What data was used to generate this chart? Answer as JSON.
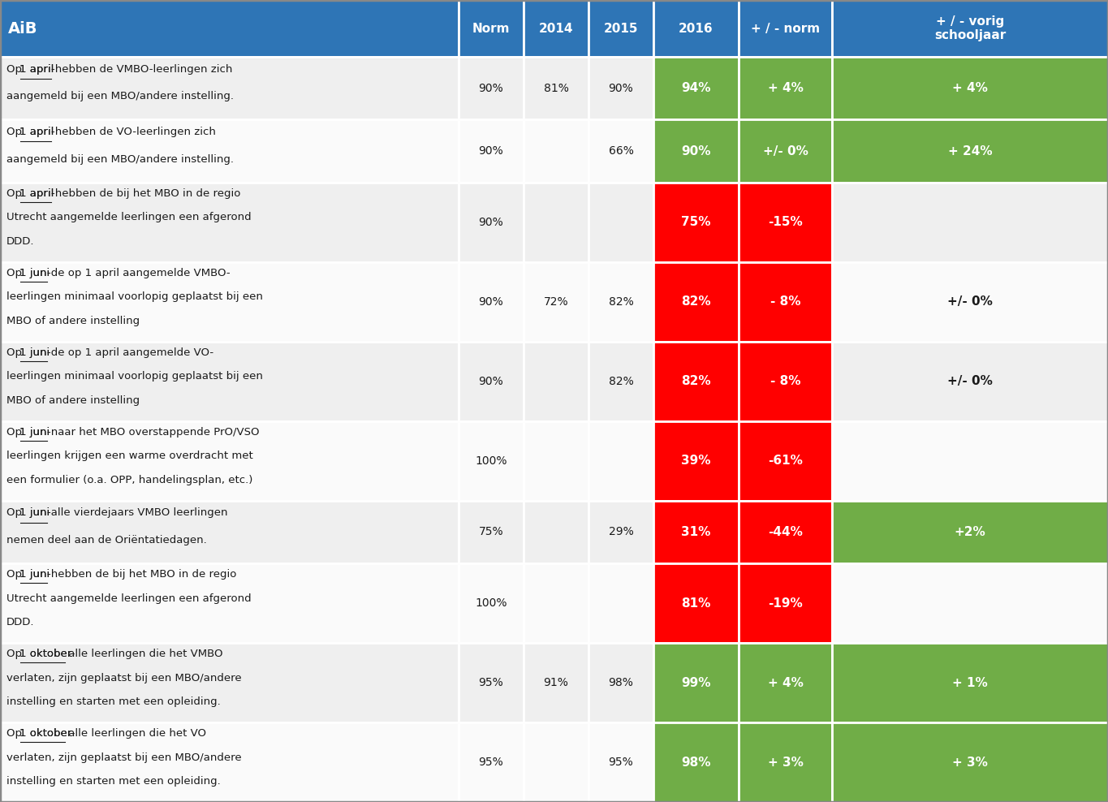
{
  "header_bg": "#2E75B6",
  "header_text_color": "#FFFFFF",
  "header_col0": "AiB",
  "header_cols": [
    "Norm",
    "2014",
    "2015",
    "2016",
    "+ / - norm",
    "+ / - vorig\nschooljaar"
  ],
  "row_bg_odd": "#EFEFEF",
  "row_bg_even": "#FAFAFA",
  "green_bg": "#70AD47",
  "red_bg": "#FF0000",
  "white_text": "#FFFFFF",
  "dark_text": "#1A1A1A",
  "border_color": "#FFFFFF",
  "rows": [
    {
      "description": "Op 1 april-hebben de VMBO-leerlingen zich\naangemeld bij een MBO/andere instelling.",
      "norm": "90%",
      "y2014": "81%",
      "y2015": "90%",
      "y2016": "94%",
      "plus_norm": "+ 4%",
      "plus_vorig": "+ 4%",
      "color_2016": "green",
      "color_norm": "green",
      "color_vorig": "green"
    },
    {
      "description": "Op 1 april-hebben de VO-leerlingen zich\naangemeld bij een MBO/andere instelling.",
      "norm": "90%",
      "y2014": "",
      "y2015": "66%",
      "y2016": "90%",
      "plus_norm": "+/- 0%",
      "plus_vorig": "+ 24%",
      "color_2016": "green",
      "color_norm": "green",
      "color_vorig": "green"
    },
    {
      "description": "Op 1 april-hebben de bij het MBO in de regio\nUtrecht aangemelde leerlingen een afgerond\nDDD.",
      "norm": "90%",
      "y2014": "",
      "y2015": "",
      "y2016": "75%",
      "plus_norm": "-15%",
      "plus_vorig": "",
      "color_2016": "red",
      "color_norm": "red",
      "color_vorig": "none"
    },
    {
      "description": "Op 1 juni-de op 1 april aangemelde VMBO-\nleerlingen minimaal voorlopig geplaatst bij een\nMBO of andere instelling",
      "norm": "90%",
      "y2014": "72%",
      "y2015": "82%",
      "y2016": "82%",
      "plus_norm": "- 8%",
      "plus_vorig": "+/- 0%",
      "color_2016": "red",
      "color_norm": "red",
      "color_vorig": "none"
    },
    {
      "description": "Op 1 juni-de op 1 april aangemelde VO-\nleerlingen minimaal voorlopig geplaatst bij een\nMBO of andere instelling",
      "norm": "90%",
      "y2014": "",
      "y2015": "82%",
      "y2016": "82%",
      "plus_norm": "- 8%",
      "plus_vorig": "+/- 0%",
      "color_2016": "red",
      "color_norm": "red",
      "color_vorig": "none"
    },
    {
      "description": "Op 1 juni-naar het MBO overstappende PrO/VSO\nleerlingen krijgen een warme overdracht met\neen formulier (o.a. OPP, handelingsplan, etc.)",
      "norm": "100%",
      "y2014": "",
      "y2015": "",
      "y2016": "39%",
      "plus_norm": "-61%",
      "plus_vorig": "",
      "color_2016": "red",
      "color_norm": "red",
      "color_vorig": "none"
    },
    {
      "description": "Op 1 juni-alle vierdejaars VMBO leerlingen\nnemen deel aan de Oriëntatiedagen.",
      "norm": "75%",
      "y2014": "",
      "y2015": "29%",
      "y2016": "31%",
      "plus_norm": "-44%",
      "plus_vorig": "+2%",
      "color_2016": "red",
      "color_norm": "red",
      "color_vorig": "green"
    },
    {
      "description": "Op 1 juni-hebben de bij het MBO in de regio\nUtrecht aangemelde leerlingen een afgerond\nDDD.",
      "norm": "100%",
      "y2014": "",
      "y2015": "",
      "y2016": "81%",
      "plus_norm": "-19%",
      "plus_vorig": "",
      "color_2016": "red",
      "color_norm": "red",
      "color_vorig": "none"
    },
    {
      "description": "Op 1 oktober- alle leerlingen die het VMBO\nverlaten, zijn geplaatst bij een MBO/andere\ninstelling en starten met een opleiding.",
      "norm": "95%",
      "y2014": "91%",
      "y2015": "98%",
      "y2016": "99%",
      "plus_norm": "+ 4%",
      "plus_vorig": "+ 1%",
      "color_2016": "green",
      "color_norm": "green",
      "color_vorig": "green"
    },
    {
      "description": "Op 1 oktober- alle leerlingen die het VO\nverlaten, zijn geplaatst bij een MBO/andere\ninstelling en starten met een opleiding.",
      "norm": "95%",
      "y2014": "",
      "y2015": "95%",
      "y2016": "98%",
      "plus_norm": "+ 3%",
      "plus_vorig": "+ 3%",
      "color_2016": "green",
      "color_norm": "green",
      "color_vorig": "green"
    }
  ],
  "underline_info": [
    {
      "word": "1 april",
      "prefix": "Op "
    },
    {
      "word": "1 april",
      "prefix": "Op "
    },
    {
      "word": "1 april",
      "prefix": "Op "
    },
    {
      "word": "1 juni",
      "prefix": "Op "
    },
    {
      "word": "1 juni",
      "prefix": "Op "
    },
    {
      "word": "1 juni",
      "prefix": "Op "
    },
    {
      "word": "1 juni",
      "prefix": "Op "
    },
    {
      "word": "1 juni",
      "prefix": "Op "
    },
    {
      "word": "1 oktober-",
      "prefix": "Op "
    },
    {
      "word": "1 oktober-",
      "prefix": "Op "
    }
  ]
}
